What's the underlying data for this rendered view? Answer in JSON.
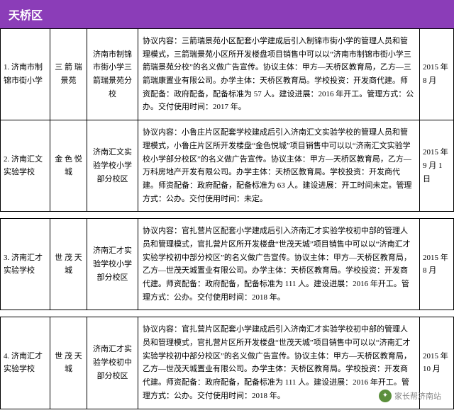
{
  "header": {
    "title": "天桥区"
  },
  "colors": {
    "header_bg": "#8b3db8",
    "header_fg": "#ffffff",
    "border": "#000000"
  },
  "rows": [
    {
      "c1": "1. 济南市制锦市街小学",
      "c2": "三 箭 瑞景苑",
      "c3": "济南市制锦市街小学三箭瑞景苑分校",
      "c4": "协议内容：三箭瑞景苑小区配套小学建成后引入制锦市街小学的管理人员和管理模式，三箭瑞景苑小区所开发楼盘项目销售中可以以“济南市制锦市街小学三箭瑞景苑分校”的名义做广告宣传。协议主体：甲方—天桥区教育局，乙方—三箭瑞康置业有限公司。办学主体：天桥区教育局。学校投资：开发商代建。师资配备：政府配备，配备标准为 57 人。建设进展：2016 年开工。管理方式：公办。交付使用时间：2017 年。",
      "c5": "2015 年8 月"
    },
    {
      "c1": "2. 济南汇文实验学校",
      "c2": "金 色 悦城",
      "c3": "济南汇文实验学校小学部分校区",
      "c4": "协议内容：小鲁庄片区配套学校建成后引入济南汇文实验学校的管理人员和管理模式，小鲁庄片区所开发楼盘“金色悦城”项目销售中可以以“济南汇文实验学校小学部分校区”的名义做广告宣传。协议主体：甲方—天桥区教育局，乙方—万科房地产开发有限公司。办学主体：天桥区教育局。学校投资：开发商代建。师资配备：政府配备，配备标准为 63 人。建设进展：开工时间未定。管理方式：公办。交付使用时间：未定。",
      "c5": "2015 年9 月 1 日"
    },
    {
      "c1": "3. 济南汇才实验学校",
      "c2": "世 茂 天城",
      "c3": "济南汇才实验学校小学部分校区",
      "c4": "协议内容：官扎营片区配套小学建成后引入济南汇才实验学校初中部的管理人员和管理模式，官扎营片区所开发楼盘“世茂天城”项目销售中可以以“济南汇才实验学校初中部分校区”的名义做广告宣传。协议主体：甲方—天桥区教育局，乙方—世茂天城置业有限公司。办学主体：天桥区教育局。学校投资：开发商代建。师资配备：政府配备，配备标准为 111 人。建设进展：2016 年开工。管理方式：公办。交付使用时间：2018 年。",
      "c5": "2015 年8 月"
    },
    {
      "c1": "4. 济南汇才实验学校",
      "c2": "世 茂 天城",
      "c3": "济南汇才实验学校初中部分校区",
      "c4": "协议内容：官扎营片区配套小学建成后引入济南汇才实验学校初中部的管理人员和管理模式，官扎营片区所开发楼盘“世茂天城”项目销售中可以以“济南汇才实验学校初中部分校区”的名义做广告宣传。协议主体：甲方—天桥区教育局，乙方—世茂天城置业有限公司。办学主体：天桥区教育局。学校投资：开发商代建。师资配备：政府配备，配备标准为 111 人。建设进展：2016 年开工。管理方式：公办。交付使用时间：2018 年。",
      "c5": "2015 年10 月"
    }
  ],
  "watermark": {
    "text": "家长帮济南站"
  }
}
